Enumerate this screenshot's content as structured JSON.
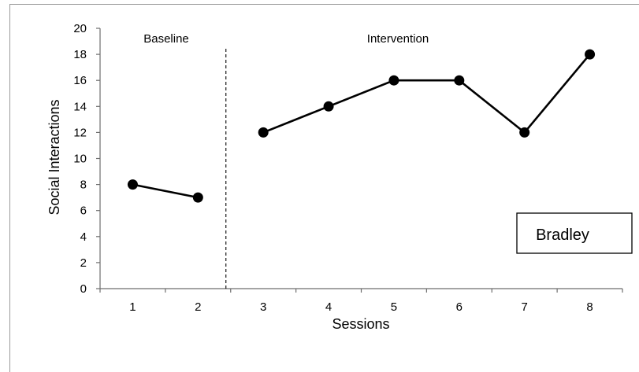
{
  "chart_data": {
    "type": "line",
    "xlabel": "Sessions",
    "ylabel": "Social Interactions",
    "ylim": [
      0,
      20
    ],
    "yticks": [
      0,
      2,
      4,
      6,
      8,
      10,
      12,
      14,
      16,
      18,
      20
    ],
    "categories": [
      "1",
      "2",
      "3",
      "4",
      "5",
      "6",
      "7",
      "8"
    ],
    "phases": [
      {
        "label": "Baseline",
        "x": [
          1,
          2
        ],
        "values": [
          8,
          7
        ]
      },
      {
        "label": "Intervention",
        "x": [
          3,
          4,
          5,
          6,
          7,
          8
        ],
        "values": [
          12,
          14,
          16,
          16,
          12,
          18
        ]
      }
    ],
    "phase_line_between": [
      2,
      3
    ],
    "legend_box": "Bradley",
    "grid": false,
    "colors": {
      "line": "#000000",
      "marker": "#000000",
      "axis": "#6e6e6e"
    }
  }
}
